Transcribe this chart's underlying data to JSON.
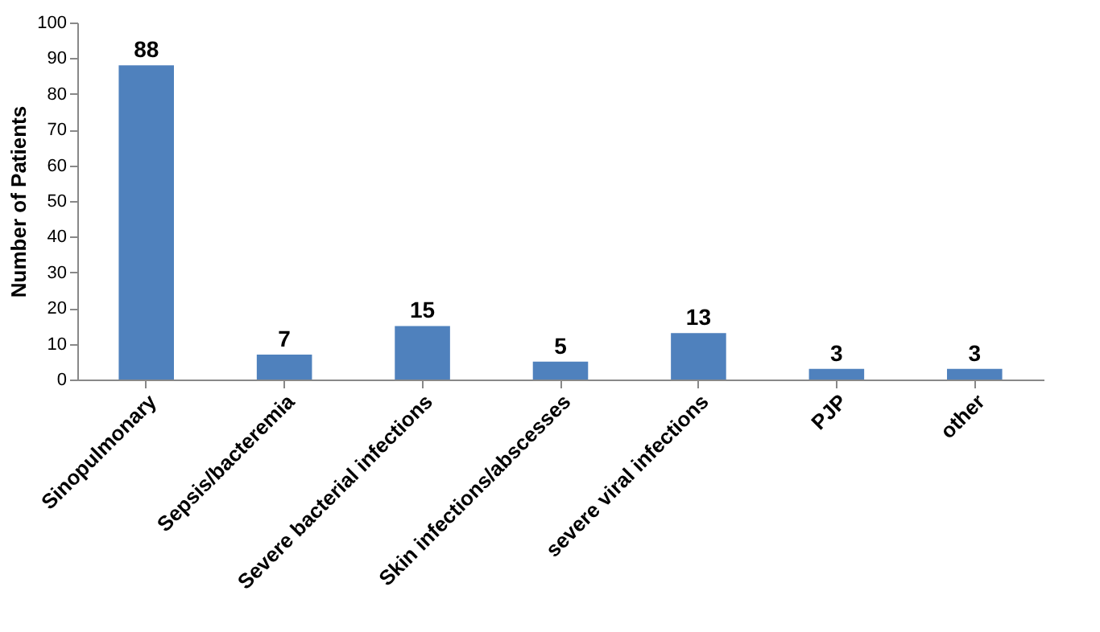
{
  "chart_data": {
    "type": "bar",
    "ylabel": "Number of Patients",
    "categories": [
      "Sinopulmonary",
      "Sepsis/bacteremia",
      "Severe bacterial infections",
      "Skin infections/abscesses",
      "severe viral infections",
      "PJP",
      "other"
    ],
    "values": [
      88,
      7,
      15,
      5,
      13,
      3,
      3
    ],
    "color": "#4f81bd",
    "data_labels": true,
    "ylim": [
      0,
      100
    ],
    "yticks": [
      0,
      10,
      20,
      30,
      40,
      50,
      60,
      70,
      80,
      90,
      100
    ],
    "grid": false
  }
}
